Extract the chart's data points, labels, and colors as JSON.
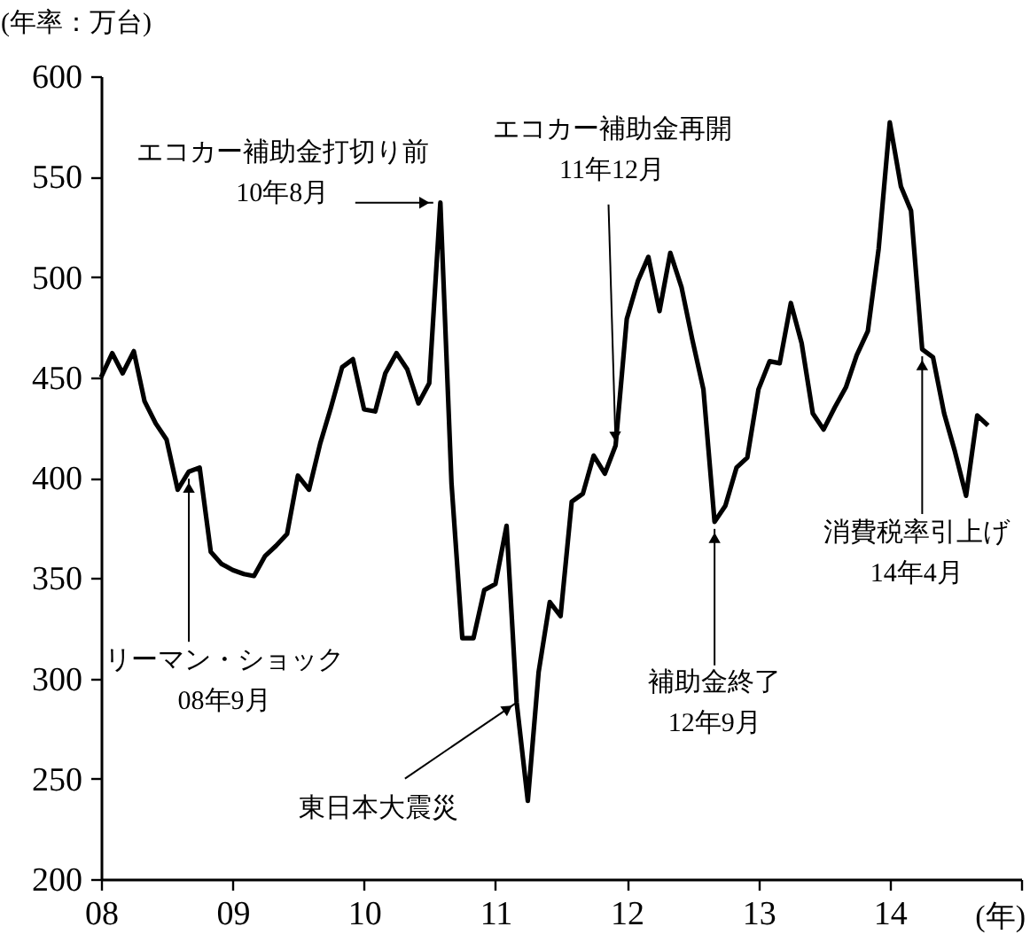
{
  "chart_data": {
    "type": "line",
    "ylabel": "(年率：万台)",
    "xlabel": "(年)",
    "x": [
      "2008-01",
      "2008-02",
      "2008-03",
      "2008-04",
      "2008-05",
      "2008-06",
      "2008-07",
      "2008-08",
      "2008-09",
      "2008-10",
      "2008-11",
      "2008-12",
      "2009-01",
      "2009-02",
      "2009-03",
      "2009-04",
      "2009-05",
      "2009-06",
      "2009-07",
      "2009-08",
      "2009-09",
      "2009-10",
      "2009-11",
      "2009-12",
      "2010-01",
      "2010-02",
      "2010-03",
      "2010-04",
      "2010-05",
      "2010-06",
      "2010-07",
      "2010-08",
      "2010-09",
      "2010-10",
      "2010-11",
      "2010-12",
      "2011-01",
      "2011-02",
      "2011-03",
      "2011-04",
      "2011-05",
      "2011-06",
      "2011-07",
      "2011-08",
      "2011-09",
      "2011-10",
      "2011-11",
      "2011-12",
      "2012-01",
      "2012-02",
      "2012-03",
      "2012-04",
      "2012-05",
      "2012-06",
      "2012-07",
      "2012-08",
      "2012-09",
      "2012-10",
      "2012-11",
      "2012-12",
      "2013-01",
      "2013-02",
      "2013-03",
      "2013-04",
      "2013-05",
      "2013-06",
      "2013-07",
      "2013-08",
      "2013-09",
      "2013-10",
      "2013-11",
      "2013-12",
      "2014-01",
      "2014-02",
      "2014-03",
      "2014-04",
      "2014-05",
      "2014-06",
      "2014-07",
      "2014-08",
      "2014-09",
      "2014-10"
    ],
    "series": [
      {
        "color": "#000000",
        "values": [
          450,
          462,
          452,
          463,
          438,
          427,
          419,
          394,
          403,
          405,
          363,
          357,
          354,
          352,
          351,
          361,
          366,
          372,
          401,
          394,
          417,
          435,
          455,
          459,
          434,
          433,
          452,
          462,
          454,
          437,
          447,
          537,
          397,
          320,
          320,
          344,
          347,
          376,
          288,
          239,
          303,
          338,
          331,
          388,
          392,
          411,
          402,
          416,
          479,
          498,
          510,
          483,
          512,
          495,
          469,
          444,
          378,
          386,
          405,
          410,
          444,
          458,
          457,
          487,
          467,
          432,
          424,
          435,
          445,
          461,
          473,
          514,
          577,
          545,
          533,
          464,
          460,
          432,
          413,
          391,
          431,
          426
        ]
      }
    ],
    "xlim": [
      "2008-01",
      "2015-01"
    ],
    "xticks": [
      {
        "value": "2008-01",
        "label": "08"
      },
      {
        "value": "2009-01",
        "label": "09"
      },
      {
        "value": "2010-01",
        "label": "10"
      },
      {
        "value": "2011-01",
        "label": "11"
      },
      {
        "value": "2012-01",
        "label": "12"
      },
      {
        "value": "2013-01",
        "label": "13"
      },
      {
        "value": "2014-01",
        "label": "14"
      },
      {
        "value": "2015-01",
        "label": null
      }
    ],
    "ylim": [
      200,
      600
    ],
    "yticks": [
      200,
      250,
      300,
      350,
      400,
      450,
      500,
      550,
      600
    ],
    "annotations": [
      {
        "text": "エコカー補助金打切り前\n10年8月",
        "x": "2010-08",
        "y": 537
      },
      {
        "text": "エコカー補助金再開\n11年12月",
        "x": "2011-12",
        "y": 416
      },
      {
        "text": "リーマン・ショック\n08年9月",
        "x": "2008-09",
        "y": 403
      },
      {
        "text": "東日本大震災",
        "x": "2011-03",
        "y": 288
      },
      {
        "text": "補助金終了\n12年9月",
        "x": "2012-09",
        "y": 378
      },
      {
        "text": "消費税率引上げ\n14年4月",
        "x": "2014-04",
        "y": 464
      }
    ],
    "grid": false,
    "line_style": "solid",
    "marker": "none"
  }
}
